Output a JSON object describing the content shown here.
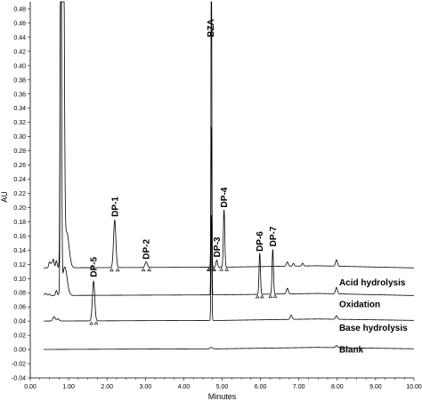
{
  "chart_data": {
    "type": "line",
    "title": "",
    "xlabel": "Minutes",
    "ylabel": "AU",
    "xlim": [
      0,
      10
    ],
    "ylim": [
      -0.04,
      0.49
    ],
    "x_ticks": [
      "0.00",
      "1.00",
      "2.00",
      "3.00",
      "4.00",
      "5.00",
      "6.00",
      "7.00",
      "8.00",
      "9.00",
      "10.00"
    ],
    "y_ticks": [
      "-0.04",
      "-0.02",
      "0.00",
      "0.02",
      "0.04",
      "0.06",
      "0.08",
      "0.10",
      "0.12",
      "0.14",
      "0.16",
      "0.18",
      "0.20",
      "0.22",
      "0.24",
      "0.26",
      "0.28",
      "0.30",
      "0.32",
      "0.34",
      "0.36",
      "0.38",
      "0.40",
      "0.42",
      "0.44",
      "0.46",
      "0.48"
    ],
    "grid": false,
    "series": [
      {
        "name": "Acid hydrolysis",
        "color": "#000000",
        "baseline": 0.115,
        "drift": [
          [
            0,
            0.115
          ],
          [
            5.0,
            0.116
          ],
          [
            7.5,
            0.118
          ],
          [
            10,
            0.115
          ]
        ],
        "peaks": [
          {
            "x": 0.5,
            "h": 0.008,
            "w": 0.02
          },
          {
            "x": 0.55,
            "h": 0.006,
            "w": 0.02
          },
          {
            "x": 0.6,
            "h": 0.012,
            "w": 0.02
          },
          {
            "x": 0.68,
            "h": 0.01,
            "w": 0.02
          },
          {
            "x": 0.8,
            "h": 0.6,
            "w": 0.018
          },
          {
            "x": 0.86,
            "h": 0.6,
            "w": 0.024
          },
          {
            "x": 0.95,
            "h": 0.05,
            "w": 0.06
          },
          {
            "x": 2.2,
            "h": 0.067,
            "w": 0.03
          },
          {
            "x": 3.02,
            "h": 0.008,
            "w": 0.03
          },
          {
            "x": 4.72,
            "h": 0.2,
            "w": 0.012
          },
          {
            "x": 4.86,
            "h": 0.01,
            "w": 0.02
          },
          {
            "x": 5.05,
            "h": 0.081,
            "w": 0.018
          },
          {
            "x": 6.7,
            "h": 0.006,
            "w": 0.025
          },
          {
            "x": 6.86,
            "h": 0.004,
            "w": 0.02
          },
          {
            "x": 7.1,
            "h": 0.004,
            "w": 0.02
          },
          {
            "x": 7.98,
            "h": 0.009,
            "w": 0.025
          }
        ]
      },
      {
        "name": "Oxidation",
        "color": "#000000",
        "baseline": 0.076,
        "drift": [
          [
            0,
            0.076
          ],
          [
            5.0,
            0.077
          ],
          [
            7.5,
            0.079
          ],
          [
            10,
            0.076
          ]
        ],
        "peaks": [
          {
            "x": 0.4,
            "h": 0.003,
            "w": 0.03
          },
          {
            "x": 0.5,
            "h": 0.002,
            "w": 0.02
          },
          {
            "x": 0.68,
            "h": 0.007,
            "w": 0.02
          },
          {
            "x": 0.8,
            "h": 0.6,
            "w": 0.016
          },
          {
            "x": 0.9,
            "h": 0.04,
            "w": 0.06
          },
          {
            "x": 4.72,
            "h": 0.6,
            "w": 0.01
          },
          {
            "x": 5.98,
            "h": 0.058,
            "w": 0.018
          },
          {
            "x": 6.32,
            "h": 0.063,
            "w": 0.018
          },
          {
            "x": 6.7,
            "h": 0.008,
            "w": 0.025
          },
          {
            "x": 7.98,
            "h": 0.009,
            "w": 0.025
          }
        ]
      },
      {
        "name": "Base hydrolysis",
        "color": "#000000",
        "baseline": 0.04,
        "drift": [
          [
            0,
            0.04
          ],
          [
            5.0,
            0.041
          ],
          [
            7.5,
            0.043
          ],
          [
            10,
            0.041
          ]
        ],
        "peaks": [
          {
            "x": 0.62,
            "h": 0.006,
            "w": 0.03
          },
          {
            "x": 0.72,
            "h": 0.003,
            "w": 0.03
          },
          {
            "x": 1.65,
            "h": 0.056,
            "w": 0.03
          },
          {
            "x": 4.72,
            "h": 0.15,
            "w": 0.012
          },
          {
            "x": 6.8,
            "h": 0.006,
            "w": 0.025
          },
          {
            "x": 7.98,
            "h": 0.005,
            "w": 0.025
          }
        ]
      },
      {
        "name": "Blank",
        "color": "#000000",
        "baseline": 0.0,
        "drift": [
          [
            0,
            0.0
          ],
          [
            5.0,
            0.001
          ],
          [
            7.5,
            0.003
          ],
          [
            10,
            0.001
          ]
        ],
        "peaks": [
          {
            "x": 4.72,
            "h": 0.002,
            "w": 0.03
          },
          {
            "x": 7.98,
            "h": 0.003,
            "w": 0.025
          }
        ]
      }
    ],
    "peak_annotations": [
      {
        "text": "DP-1",
        "x": 2.2,
        "y": 0.187
      },
      {
        "text": "DP-2",
        "x": 3.02,
        "y": 0.127
      },
      {
        "text": "BZA",
        "x": 4.7,
        "y": 0.44
      },
      {
        "text": "DP-3",
        "x": 4.86,
        "y": 0.13
      },
      {
        "text": "DP-4",
        "x": 5.05,
        "y": 0.2
      },
      {
        "text": "DP-5",
        "x": 1.65,
        "y": 0.102
      },
      {
        "text": "DP-6",
        "x": 5.98,
        "y": 0.138
      },
      {
        "text": "DP-7",
        "x": 6.32,
        "y": 0.145
      }
    ],
    "trace_labels": [
      {
        "text": "Acid hydrolysis",
        "x": 8.05,
        "y": 0.0905
      },
      {
        "text": "Oxidation",
        "x": 8.05,
        "y": 0.0595
      },
      {
        "text": "Base hydrolysis",
        "x": 8.05,
        "y": 0.0265
      },
      {
        "text": "Blank",
        "x": 8.05,
        "y": -0.004
      }
    ],
    "marker_x": [
      2.12,
      2.28,
      2.95,
      3.1,
      4.65,
      4.79,
      4.98,
      5.12,
      5.92,
      6.04,
      6.26,
      6.38,
      1.59,
      1.72,
      4.66,
      4.78
    ]
  }
}
